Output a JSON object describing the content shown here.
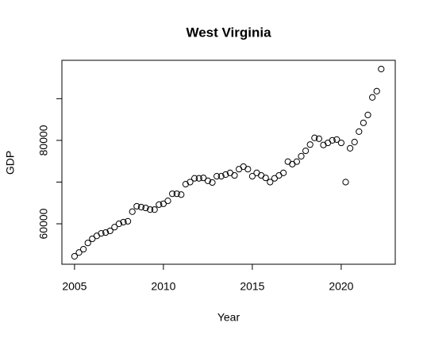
{
  "chart_data": {
    "type": "scatter",
    "title": "West Virginia",
    "x_label": "Year",
    "y_label": "GDP",
    "x": [
      2005,
      2005.25,
      2005.5,
      2005.75,
      2006,
      2006.25,
      2006.5,
      2006.75,
      2007,
      2007.25,
      2007.5,
      2007.75,
      2008,
      2008.25,
      2008.5,
      2008.75,
      2009,
      2009.25,
      2009.5,
      2009.75,
      2010,
      2010.25,
      2010.5,
      2010.75,
      2011,
      2011.25,
      2011.5,
      2011.75,
      2012,
      2012.25,
      2012.5,
      2012.75,
      2013,
      2013.25,
      2013.5,
      2013.75,
      2014,
      2014.25,
      2014.5,
      2014.75,
      2015,
      2015.25,
      2015.5,
      2015.75,
      2016,
      2016.25,
      2016.5,
      2016.75,
      2017,
      2017.25,
      2017.5,
      2017.75,
      2018,
      2018.25,
      2018.5,
      2018.75,
      2019,
      2019.25,
      2019.5,
      2019.75,
      2020,
      2020.25,
      2020.5,
      2020.75,
      2021,
      2021.25,
      2021.5,
      2021.75,
      2022,
      2022.25
    ],
    "values": [
      52200,
      53100,
      53900,
      55400,
      56400,
      57100,
      57700,
      57900,
      58300,
      59200,
      60000,
      60400,
      60600,
      62900,
      64200,
      64000,
      63800,
      63400,
      63400,
      64600,
      64800,
      65500,
      67200,
      67200,
      67000,
      69500,
      70000,
      70900,
      70900,
      71000,
      70300,
      69900,
      71400,
      71400,
      71800,
      72200,
      71600,
      73100,
      73700,
      73100,
      71400,
      72200,
      71600,
      71000,
      70000,
      70900,
      71600,
      72200,
      74900,
      74300,
      74900,
      76200,
      77500,
      79000,
      80600,
      80400,
      78900,
      79400,
      80000,
      80200,
      79400,
      70000,
      78100,
      79600,
      82100,
      84200,
      86100,
      90300,
      91800,
      97100
    ],
    "xlim": [
      2004.29,
      2023.04
    ],
    "xticks": [
      2005,
      2010,
      2015,
      2020
    ],
    "ylim": [
      50300,
      99200
    ],
    "yticks": [
      60000,
      80000
    ],
    "yticks_minor": [
      70000,
      90000
    ],
    "color": "#000000",
    "grid": false
  }
}
